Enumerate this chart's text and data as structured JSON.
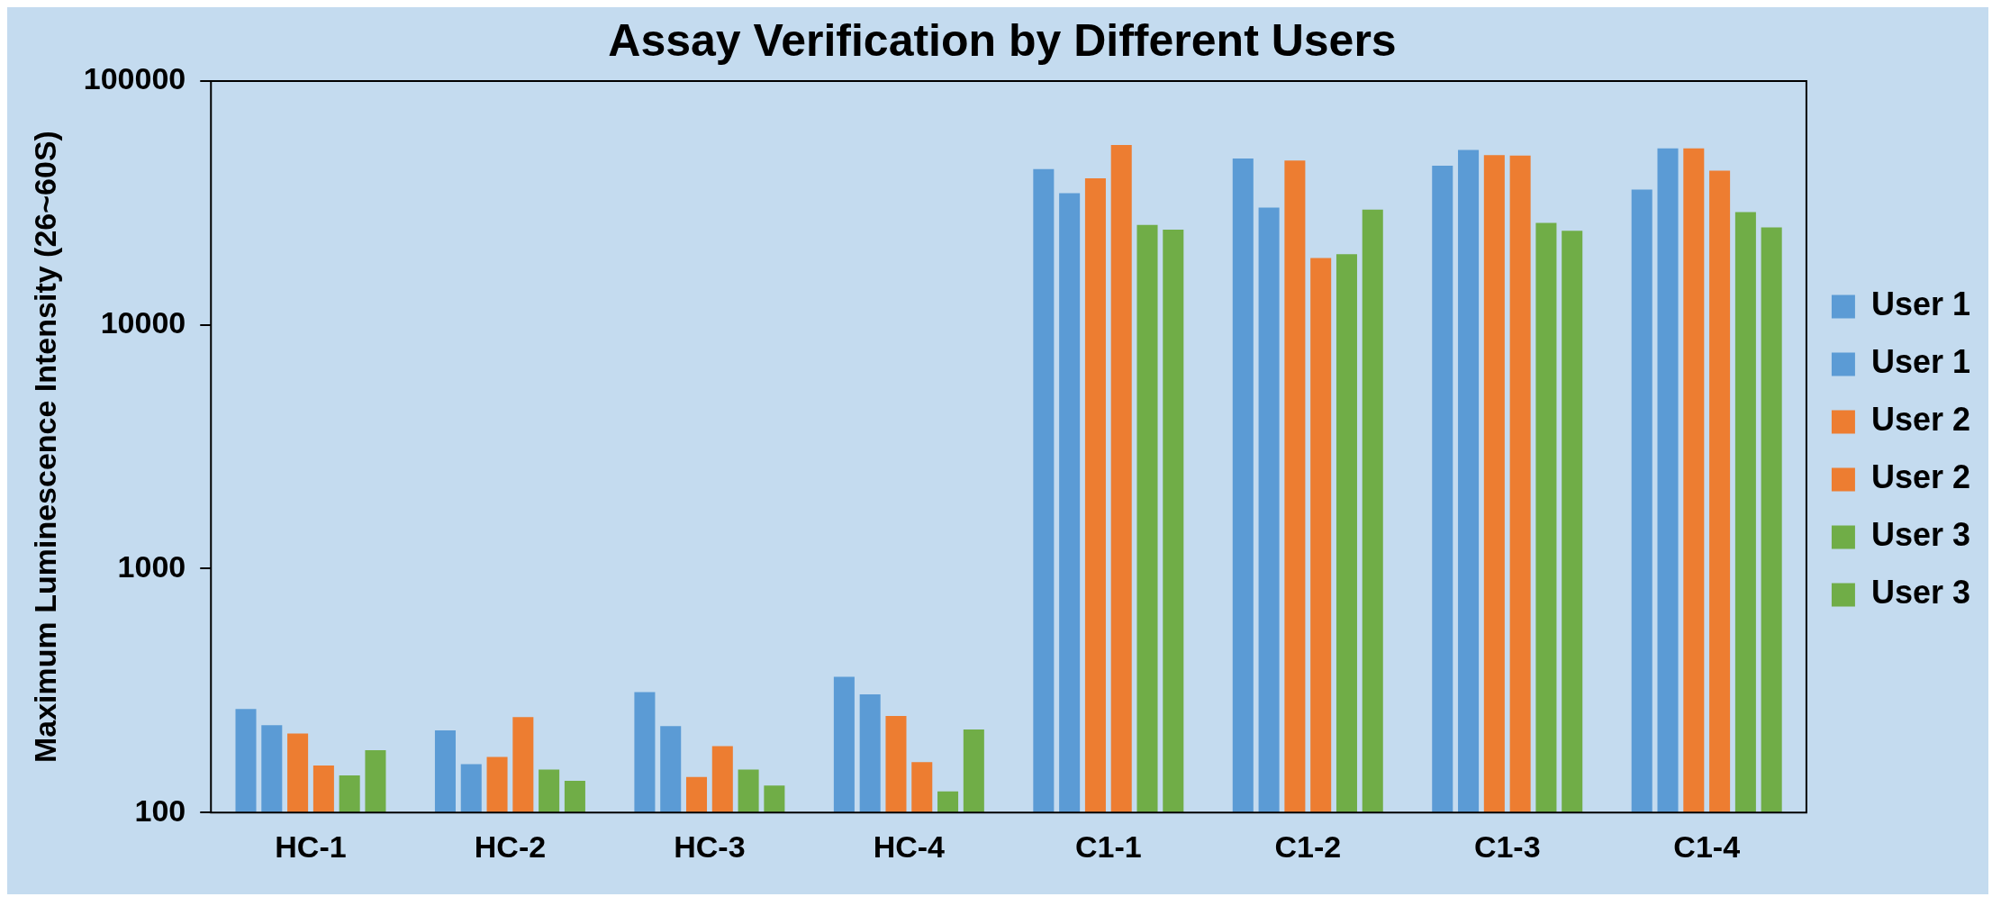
{
  "chart_data": {
    "type": "bar",
    "title": "Assay Verification by Different Users",
    "ylabel": "Maximum Luminescence Intensity (26~60S)",
    "categories": [
      "HC-1",
      "HC-2",
      "HC-3",
      "HC-4",
      "C1-1",
      "C1-2",
      "C1-3",
      "C1-4"
    ],
    "series": [
      {
        "name": "User 1",
        "color": "#5b9bd5",
        "values": [
          266,
          217,
          312,
          360,
          43500,
          48100,
          45000,
          35900
        ]
      },
      {
        "name": "User 1",
        "color": "#5b9bd5",
        "values": [
          228,
          158,
          226,
          305,
          34700,
          30300,
          52200,
          53000
        ]
      },
      {
        "name": "User 2",
        "color": "#ed7d31",
        "values": [
          211,
          169,
          140,
          249,
          39900,
          47200,
          49700,
          53000
        ]
      },
      {
        "name": "User 2",
        "color": "#ed7d31",
        "values": [
          156,
          246,
          187,
          161,
          54700,
          18800,
          49500,
          42900
        ]
      },
      {
        "name": "User 3",
        "color": "#70ad47",
        "values": [
          142,
          150,
          150,
          122,
          25700,
          19500,
          26200,
          29000
        ]
      },
      {
        "name": "User 3",
        "color": "#70ad47",
        "values": [
          180,
          135,
          129,
          219,
          24600,
          29700,
          24300,
          25100
        ]
      }
    ],
    "log": true,
    "ylim": [
      100,
      100000
    ],
    "yticks": [
      100,
      1000,
      10000,
      100000
    ],
    "grid": false,
    "legend": "right"
  }
}
